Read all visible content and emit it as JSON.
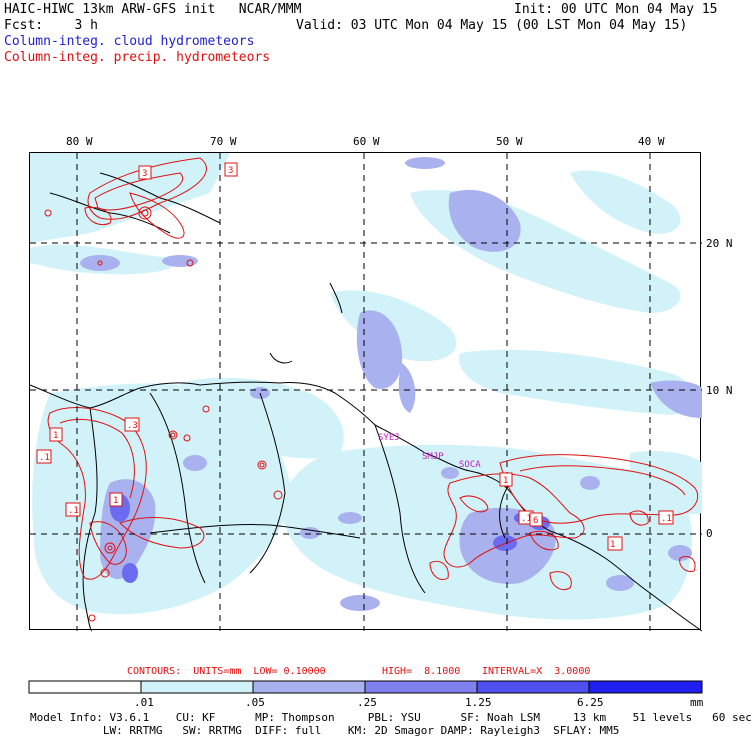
{
  "header": {
    "model_line": "HAIC-HIWC 13km ARW-GFS init   NCAR/MMM",
    "init": "Init: 00 UTC Mon 04 May 15",
    "fcst": "Fcst:    3 h",
    "valid": "Valid: 03 UTC Mon 04 May 15 (00 LST Mon 04 May 15)",
    "field_cloud": "Column-integ. cloud hydrometeors",
    "field_precip": "Column-integ. precip. hydrometeors"
  },
  "map": {
    "lon_labels": [
      "80 W",
      "70 W",
      "60 W",
      "50 W",
      "40 W"
    ],
    "lat_labels": [
      "20 N",
      "10 N",
      "0"
    ],
    "stations": [
      "SYEJ",
      "SMJP",
      "SOCA"
    ],
    "max_min_labels": [
      "3",
      "3",
      "1",
      ".1",
      ".3",
      "1",
      ".1",
      "1",
      ".1",
      "6",
      "1",
      ".1"
    ],
    "colors": {
      "cloud_light": "#d2f2fa",
      "cloud_mid": "#a9b2ee",
      "cloud_dark": "#6b6bf0",
      "precip_contour": "#e01010",
      "station": "#c020c0",
      "grid": "#000000"
    }
  },
  "contours": {
    "units_label": "CONTOURS:  UNITS=mm  LOW= 0.10000",
    "high_label": "HIGH=  8.1000",
    "interval_label": "INTERVAL=X  3.0000"
  },
  "colorbar": {
    "ticks": [
      ".01",
      ".05",
      ".25",
      "1.25",
      "6.25"
    ],
    "unit": "mm",
    "colors": [
      "#ffffff",
      "#d2f2fa",
      "#a9b2ee",
      "#8080ee",
      "#5050f0",
      "#2020f0"
    ]
  },
  "footer": {
    "line1": "Model Info: V3.6.1    CU: KF      MP: Thompson     PBL: YSU      SF: Noah LSM     13 km    51 levels   60 sec",
    "line2": "           LW: RRTMG   SW: RRTMG  DIFF: full    KM: 2D Smagor DAMP: Rayleigh3  SFLAY: MM5"
  }
}
